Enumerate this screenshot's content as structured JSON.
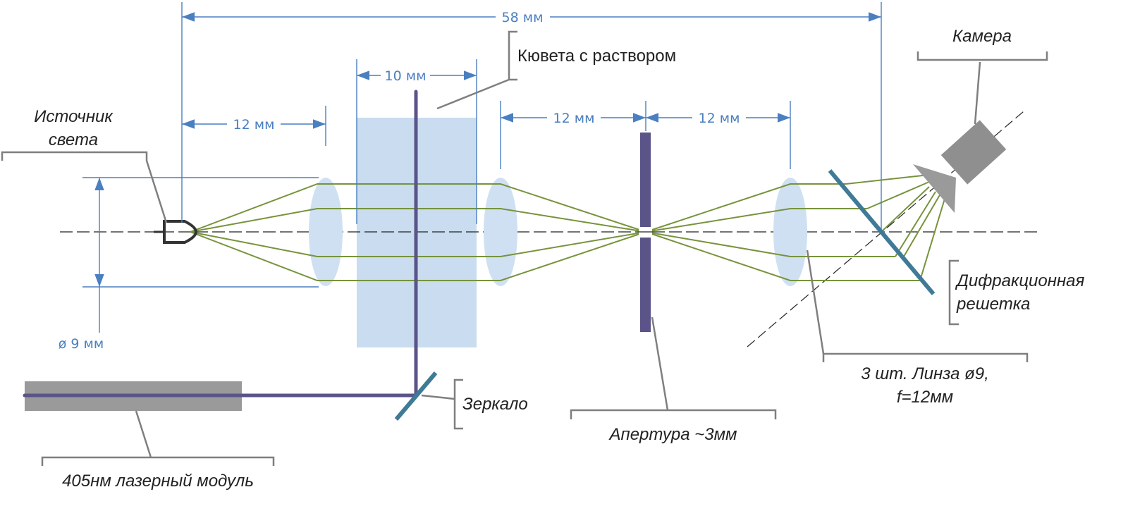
{
  "dimensions": {
    "total": "58 мм",
    "cuvette_width": "10 мм",
    "source_to_lens": "12 мм",
    "lens_to_aperture": "12 мм",
    "aperture_to_lens": "12 мм",
    "beam_diameter": "ø 9 мм"
  },
  "labels": {
    "light_source": [
      "Источник",
      "света"
    ],
    "cuvette": "Кювета с раствором",
    "camera": "Камера",
    "grating": [
      "Дифракционная",
      "решетка"
    ],
    "lenses": [
      "3 шт. Линза ø9,",
      "f=12мм"
    ],
    "aperture": "Апертура ~3мм",
    "mirror": "Зеркало",
    "laser": "405нм лазерный модуль"
  },
  "colors": {
    "dimension": "#4a7fc0",
    "rays": "#77933c",
    "lens": "#cfe0f2",
    "cuvette": "#c9dcf0",
    "laser_beam": "#5a5488",
    "aperture": "#5a5488",
    "mirror": "#3f7a96",
    "grating": "#3f7a96",
    "camera": "#9a9a9a",
    "laser_body": "#9a9a9a",
    "callout": "#7f7f7f"
  }
}
